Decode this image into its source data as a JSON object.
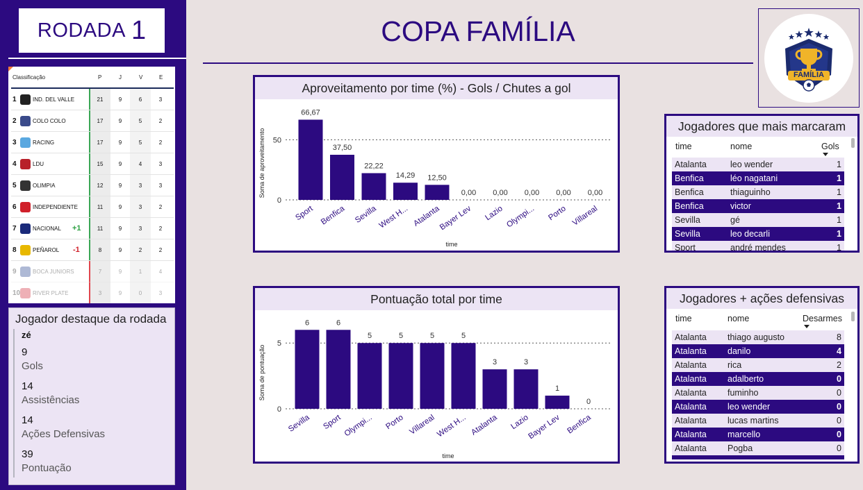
{
  "sidebar": {
    "round_label": "RODADA",
    "round_number": "1",
    "standings": {
      "headers": {
        "team": "Classificação",
        "P": "P",
        "J": "J",
        "V": "V",
        "E": "E"
      },
      "rows": [
        {
          "pos": "1",
          "team": "IND. DEL VALLE",
          "delta": "",
          "P": "21",
          "J": "9",
          "V": "6",
          "E": "3",
          "crest_color": "#222222"
        },
        {
          "pos": "2",
          "team": "COLO COLO",
          "delta": "",
          "P": "17",
          "J": "9",
          "V": "5",
          "E": "2",
          "crest_color": "#3a4a8a"
        },
        {
          "pos": "3",
          "team": "RACING",
          "delta": "",
          "P": "17",
          "J": "9",
          "V": "5",
          "E": "2",
          "crest_color": "#5aa8e0"
        },
        {
          "pos": "4",
          "team": "LDU",
          "delta": "",
          "P": "15",
          "J": "9",
          "V": "4",
          "E": "3",
          "crest_color": "#b8202a"
        },
        {
          "pos": "5",
          "team": "OLIMPIA",
          "delta": "",
          "P": "12",
          "J": "9",
          "V": "3",
          "E": "3",
          "crest_color": "#333333"
        },
        {
          "pos": "6",
          "team": "INDEPENDIENTE",
          "delta": "",
          "P": "11",
          "J": "9",
          "V": "3",
          "E": "2",
          "crest_color": "#d0202a"
        },
        {
          "pos": "7",
          "team": "NACIONAL",
          "delta": "+1",
          "P": "11",
          "J": "9",
          "V": "3",
          "E": "2",
          "crest_color": "#1a2a7a"
        },
        {
          "pos": "8",
          "team": "PEÑAROL",
          "delta": "-1",
          "P": "8",
          "J": "9",
          "V": "2",
          "E": "2",
          "crest_color": "#e8b800"
        },
        {
          "pos": "9",
          "team": "BOCA JUNIORS",
          "delta": "",
          "P": "7",
          "J": "9",
          "V": "1",
          "E": "4",
          "crest_color": "#1a3a8a"
        },
        {
          "pos": "10",
          "team": "RIVER PLATE",
          "delta": "",
          "P": "3",
          "J": "9",
          "V": "0",
          "E": "3",
          "crest_color": "#d02030"
        }
      ]
    },
    "player_card": {
      "title": "Jogador destaque da rodada",
      "name": "zé",
      "stats": [
        {
          "value": "9",
          "label": "Gols"
        },
        {
          "value": "14",
          "label": "Assistências"
        },
        {
          "value": "14",
          "label": "Ações Defensivas"
        },
        {
          "value": "39",
          "label": "Pontuação"
        }
      ]
    }
  },
  "header": {
    "title": "COPA FAMÍLIA"
  },
  "logo": {
    "text": "FAMÍLIA"
  },
  "colors": {
    "brand": "#2c0a80",
    "panel": "#ece4f4",
    "background": "#e9e1e1",
    "positive": "#2ea043",
    "negative": "#d0202a"
  },
  "chart_data": [
    {
      "type": "bar",
      "title": "Aproveitamento por time (%) - Gols / Chutes a gol",
      "xlabel": "time",
      "ylabel": "Soma de aproveitamento",
      "categories": [
        "Sport",
        "Benfica",
        "Sevilla",
        "West H...",
        "Atalanta",
        "Bayer Lev",
        "Lazio",
        "Olympi...",
        "Porto",
        "Villareal"
      ],
      "values": [
        66.67,
        37.5,
        22.22,
        14.29,
        12.5,
        0,
        0,
        0,
        0,
        0
      ],
      "data_labels": [
        "66,67",
        "37,50",
        "22,22",
        "14,29",
        "12,50",
        "0,00",
        "0,00",
        "0,00",
        "0,00",
        "0,00"
      ],
      "yticks": [
        "0",
        "50"
      ],
      "ylim": [
        0,
        75
      ],
      "grid": true
    },
    {
      "type": "bar",
      "title": "Pontuação total por time",
      "xlabel": "time",
      "ylabel": "Soma de pontuação",
      "categories": [
        "Sevilla",
        "Sport",
        "Olympi...",
        "Porto",
        "Villareal",
        "West H...",
        "Atalanta",
        "Lazio",
        "Bayer Lev",
        "Benfica"
      ],
      "values": [
        6,
        6,
        5,
        5,
        5,
        5,
        3,
        3,
        1,
        0
      ],
      "data_labels": [
        "6",
        "6",
        "5",
        "5",
        "5",
        "5",
        "3",
        "3",
        "1",
        "0"
      ],
      "yticks": [
        "0",
        "5"
      ],
      "ylim": [
        0,
        6.7
      ],
      "grid": true
    }
  ],
  "tables": {
    "gols": {
      "title": "Jogadores que mais marcaram",
      "headers": [
        "time",
        "nome",
        "Gols"
      ],
      "rows": [
        [
          "Atalanta",
          "leo wender",
          "1"
        ],
        [
          "Benfica",
          "léo nagatani",
          "1"
        ],
        [
          "Benfica",
          "thiaguinho",
          "1"
        ],
        [
          "Benfica",
          "victor",
          "1"
        ],
        [
          "Sevilla",
          "gé",
          "1"
        ],
        [
          "Sevilla",
          "leo decarli",
          "1"
        ],
        [
          "Sport",
          "andré mendes",
          "1"
        ]
      ]
    },
    "defesa": {
      "title": "Jogadores + ações defensivas",
      "headers": [
        "time",
        "nome",
        "Desarmes"
      ],
      "rows": [
        [
          "Atalanta",
          "thiago augusto",
          "8"
        ],
        [
          "Atalanta",
          "danilo",
          "4"
        ],
        [
          "Atalanta",
          "rica",
          "2"
        ],
        [
          "Atalanta",
          "adalberto",
          "0"
        ],
        [
          "Atalanta",
          "fuminho",
          "0"
        ],
        [
          "Atalanta",
          "leo wender",
          "0"
        ],
        [
          "Atalanta",
          "lucas martins",
          "0"
        ],
        [
          "Atalanta",
          "marcello",
          "0"
        ],
        [
          "Atalanta",
          "Pogba",
          "0"
        ]
      ]
    }
  }
}
